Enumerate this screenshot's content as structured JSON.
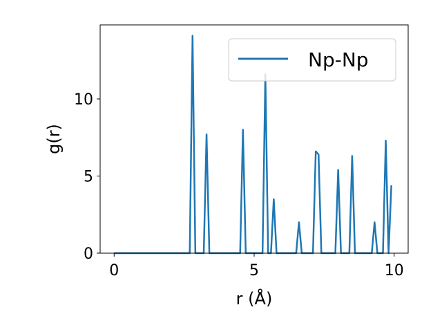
{
  "chart_data": {
    "type": "line",
    "title": "",
    "xlabel": "r (Å)",
    "ylabel": "g(r)",
    "xlim": [
      -0.5,
      10.5
    ],
    "ylim": [
      0,
      14.8
    ],
    "xticks": [
      0,
      5,
      10
    ],
    "xtick_labels": [
      "0",
      "5",
      "10"
    ],
    "yticks": [
      0,
      5,
      10
    ],
    "ytick_labels": [
      "0",
      "5",
      "10"
    ],
    "grid": false,
    "legend_position": "top-right",
    "series": [
      {
        "name": "Np-Np",
        "color": "#1f77b4",
        "x": [
          0.0,
          2.7,
          2.8,
          2.9,
          3.2,
          3.3,
          3.4,
          4.5,
          4.6,
          4.7,
          5.3,
          5.4,
          5.5,
          5.6,
          5.7,
          5.8,
          6.5,
          6.6,
          6.7,
          7.1,
          7.2,
          7.3,
          7.4,
          7.9,
          8.0,
          8.1,
          8.4,
          8.5,
          8.6,
          9.2,
          9.3,
          9.4,
          9.6,
          9.7,
          9.8,
          9.9
        ],
        "y": [
          0.0,
          0.0,
          14.1,
          0.0,
          0.0,
          7.7,
          0.0,
          0.0,
          8.0,
          0.0,
          0.0,
          11.6,
          0.0,
          0.0,
          3.5,
          0.0,
          0.0,
          2.0,
          0.0,
          0.0,
          6.6,
          6.4,
          0.0,
          0.0,
          5.4,
          0.0,
          0.0,
          6.3,
          0.0,
          0.0,
          2.0,
          0.0,
          0.0,
          7.3,
          0.0,
          4.4
        ]
      }
    ]
  }
}
